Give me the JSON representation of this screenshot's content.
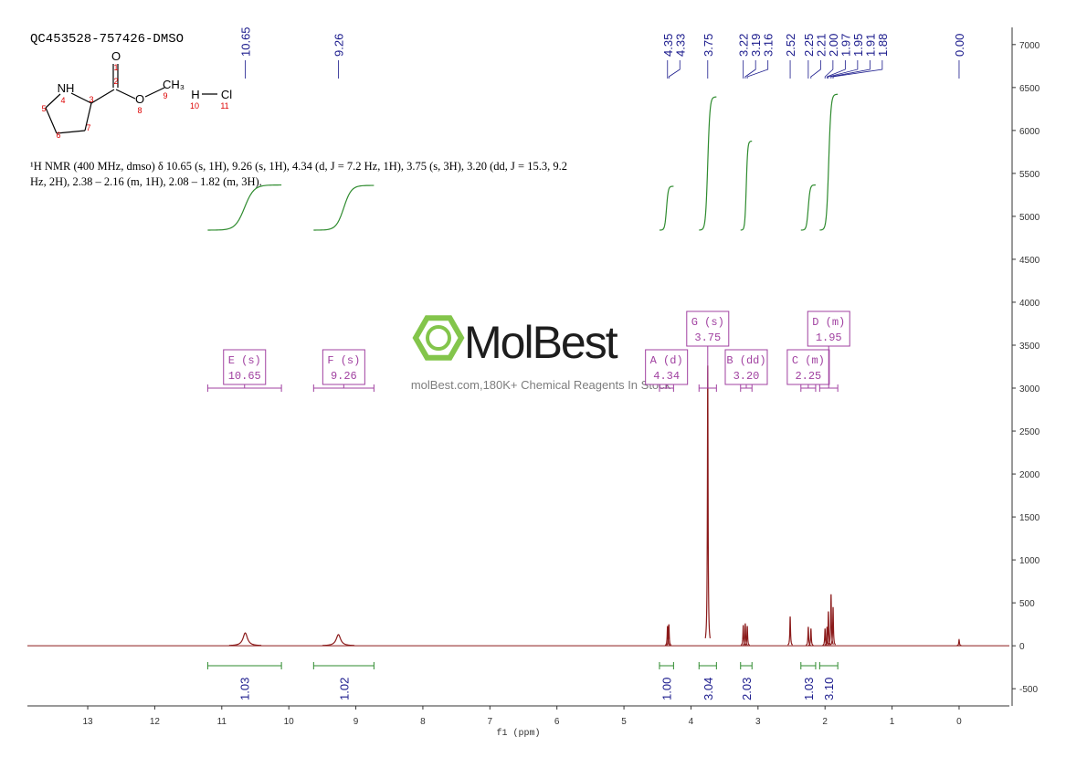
{
  "title": "QC453528-757426-DMSO",
  "molecule": {
    "atoms": [
      "O",
      "1",
      "2",
      "NH",
      "4",
      "3",
      "O",
      "8",
      "9",
      "CH₃",
      "5",
      "6",
      "7",
      "H",
      "Cl",
      "10",
      "11"
    ]
  },
  "description": "¹H NMR (400 MHz, dmso) δ 10.65 (s, 1H), 9.26 (s, 1H), 4.34 (d, J = 7.2 Hz, 1H), 3.75 (s, 3H), 3.20 (dd, J = 15.3, 9.2 Hz, 2H), 2.38 – 2.16 (m, 1H), 2.08 – 1.82 (m, 3H).",
  "watermark": {
    "brand": "MolBest",
    "tagline": "molBest.com,180K+ Chemical Reagents In Stock"
  },
  "chart_data": {
    "type": "nmr",
    "x_label": "f1 (ppm)",
    "xlim": [
      13.9,
      -0.75
    ],
    "xticks": [
      13,
      12,
      11,
      10,
      9,
      8,
      7,
      6,
      5,
      4,
      3,
      2,
      1,
      0
    ],
    "ylim": [
      -700,
      7200
    ],
    "yticks": [
      -500,
      0,
      500,
      1000,
      1500,
      2000,
      2500,
      3000,
      3500,
      4000,
      4500,
      5000,
      5500,
      6000,
      6500,
      7000
    ],
    "color": "#8b1a1a",
    "x": [
      10.65,
      9.26,
      4.35,
      4.33,
      3.75,
      3.22,
      3.19,
      3.16,
      2.52,
      2.25,
      2.21,
      2.0,
      1.97,
      1.95,
      1.91,
      1.88,
      0.0
    ],
    "values": [
      150,
      130,
      230,
      250,
      3262,
      240,
      260,
      230,
      340,
      220,
      200,
      200,
      220,
      400,
      600,
      450,
      70
    ],
    "peak_labels": [
      "10.65",
      "9.26",
      "4.35",
      "4.33",
      "3.75",
      "3.22",
      "3.19",
      "3.16",
      "2.52",
      "2.25",
      "2.21",
      "2.00",
      "1.97",
      "1.95",
      "1.91",
      "1.88",
      "0.00"
    ],
    "multiplets": [
      {
        "label": "E (s)",
        "shift": "10.65",
        "range": [
          11.21,
          10.11
        ],
        "integral": 1.03,
        "integral_label": "1.03"
      },
      {
        "label": "F (s)",
        "shift": "9.26",
        "range": [
          9.63,
          8.73
        ],
        "integral": 1.02,
        "integral_label": "1.02"
      },
      {
        "label": "A (d)",
        "shift": "4.34",
        "range": [
          4.47,
          4.26
        ],
        "integral": 1.0,
        "integral_label": "1.00"
      },
      {
        "label": "G (s)",
        "shift": "3.75",
        "range": [
          3.88,
          3.62
        ],
        "integral": 3.04,
        "integral_label": "3.04"
      },
      {
        "label": "B (dd)",
        "shift": "3.20",
        "range": [
          3.26,
          3.09
        ],
        "integral": 2.03,
        "integral_label": "2.03"
      },
      {
        "label": "C (m)",
        "shift": "2.25",
        "range": [
          2.36,
          2.14
        ],
        "integral": 1.03,
        "integral_label": "1.03"
      },
      {
        "label": "D (m)",
        "shift": "1.95",
        "range": [
          2.08,
          1.81
        ],
        "integral": 3.1,
        "integral_label": "3.10"
      }
    ]
  }
}
